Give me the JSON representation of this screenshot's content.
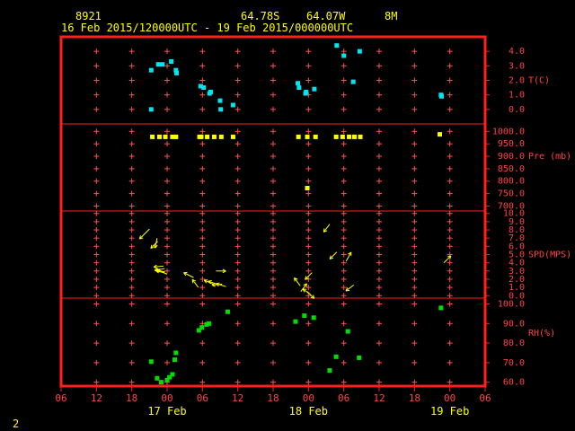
{
  "header": {
    "station_id": "8921",
    "latitude": "64.78S",
    "longitude": "64.07W",
    "elevation": "8M",
    "time_range": "16 Feb 2015/120000UTC - 19 Feb 2015/000000UTC"
  },
  "footer": {
    "page_number": "2"
  },
  "colors": {
    "frame": "#ff2020",
    "grid": "#ff5050",
    "temperature": "#00e5ee",
    "pressure": "#ffff00",
    "wind": "#ffff00",
    "humidity": "#00dd00",
    "axis_text": "#ff4444",
    "header_text": "#ffff00"
  },
  "chart_data": {
    "type": "scatter",
    "x_unit": "hours since 16 Feb 2015 06 UTC",
    "x_ticks": [
      {
        "x": 0,
        "label": "06"
      },
      {
        "x": 6,
        "label": "12"
      },
      {
        "x": 12,
        "label": "18"
      },
      {
        "x": 18,
        "label": "00"
      },
      {
        "x": 24,
        "label": "06"
      },
      {
        "x": 30,
        "label": "12"
      },
      {
        "x": 36,
        "label": "18"
      },
      {
        "x": 42,
        "label": "00"
      },
      {
        "x": 48,
        "label": "06"
      },
      {
        "x": 54,
        "label": "12"
      },
      {
        "x": 60,
        "label": "18"
      },
      {
        "x": 66,
        "label": "00"
      },
      {
        "x": 72,
        "label": "06"
      }
    ],
    "date_labels": [
      {
        "x": 18,
        "label": "17 Feb"
      },
      {
        "x": 42,
        "label": "18 Feb"
      },
      {
        "x": 66,
        "label": "19 Feb"
      }
    ],
    "xlim": [
      0,
      72
    ],
    "panels": [
      {
        "name": "T(C)",
        "label": "T(C)",
        "ylim": [
          -1,
          5
        ],
        "label_value": 2.0,
        "ticks": [
          "4.0",
          "3.0",
          "2.0",
          "1.0",
          "0.0"
        ],
        "tick_values": [
          4,
          3,
          2,
          1,
          0
        ],
        "marker": "square",
        "color_key": "temperature",
        "points": [
          [
            15.3,
            2.7
          ],
          [
            15.3,
            0.0
          ],
          [
            16.5,
            3.1
          ],
          [
            17.2,
            3.1
          ],
          [
            18.7,
            3.3
          ],
          [
            19.5,
            2.7
          ],
          [
            19.6,
            2.5
          ],
          [
            23.7,
            1.6
          ],
          [
            24.2,
            1.5
          ],
          [
            25.2,
            1.1
          ],
          [
            25.4,
            1.2
          ],
          [
            27.0,
            0.6
          ],
          [
            27.1,
            0.0
          ],
          [
            29.2,
            0.3
          ],
          [
            40.2,
            1.8
          ],
          [
            40.4,
            1.5
          ],
          [
            41.5,
            1.1
          ],
          [
            41.6,
            1.2
          ],
          [
            43.0,
            1.4
          ],
          [
            46.8,
            4.4
          ],
          [
            48.0,
            3.7
          ],
          [
            49.6,
            1.9
          ],
          [
            50.7,
            4.0
          ],
          [
            64.5,
            1.0
          ],
          [
            64.6,
            0.9
          ]
        ]
      },
      {
        "name": "Pre (mb)",
        "label": "Pre (mb)",
        "ylim": [
          680,
          1030
        ],
        "label_value": 900,
        "ticks": [
          "1000.0",
          "950.0",
          "900.0",
          "850.0",
          "800.0",
          "750.0",
          "700.0"
        ],
        "tick_values": [
          1000,
          950,
          900,
          850,
          800,
          750,
          700
        ],
        "marker": "square",
        "color_key": "pressure",
        "points": [
          [
            15.5,
            978
          ],
          [
            16.7,
            978
          ],
          [
            17.7,
            978
          ],
          [
            18.9,
            978
          ],
          [
            19.5,
            978
          ],
          [
            23.5,
            978
          ],
          [
            23.8,
            978
          ],
          [
            24.8,
            978
          ],
          [
            26.0,
            978
          ],
          [
            27.2,
            978
          ],
          [
            29.2,
            978
          ],
          [
            40.3,
            978
          ],
          [
            41.8,
            978
          ],
          [
            43.2,
            978
          ],
          [
            41.8,
            772
          ],
          [
            46.7,
            978
          ],
          [
            47.8,
            978
          ],
          [
            48.9,
            978
          ],
          [
            49.8,
            978
          ],
          [
            50.8,
            978
          ],
          [
            64.3,
            988
          ]
        ]
      },
      {
        "name": "SPD(MPS)",
        "label": "SPD(MPS)",
        "ylim": [
          -0.3,
          10.3
        ],
        "label_value": 5.0,
        "ticks": [
          "10.0",
          "9.0",
          "8.0",
          "7.0",
          "6.0",
          "5.0",
          "4.0",
          "3.0",
          "2.0",
          "1.0",
          "0.0"
        ],
        "tick_values": [
          10,
          9,
          8,
          7,
          6,
          5,
          4,
          3,
          2,
          1,
          0
        ],
        "marker": "arrow",
        "color_key": "wind",
        "arrows": [
          {
            "x": 15.0,
            "y": 8.1,
            "u": -1,
            "v": -1
          },
          {
            "x": 16.3,
            "y": 7.0,
            "u": -0.2,
            "v": -1
          },
          {
            "x": 16.4,
            "y": 6.6,
            "u": -0.7,
            "v": -0.7
          },
          {
            "x": 17.4,
            "y": 3.6,
            "u": -1,
            "v": -0.1
          },
          {
            "x": 17.6,
            "y": 3.3,
            "u": -1,
            "v": -0.2
          },
          {
            "x": 17.6,
            "y": 2.9,
            "u": -1,
            "v": 0.2
          },
          {
            "x": 17.8,
            "y": 2.7,
            "u": -1,
            "v": 0.3
          },
          {
            "x": 18.0,
            "y": 2.6,
            "u": -1,
            "v": 0.5
          },
          {
            "x": 22.5,
            "y": 2.2,
            "u": -1,
            "v": 0.5
          },
          {
            "x": 23.3,
            "y": 1.0,
            "u": -0.6,
            "v": 0.8
          },
          {
            "x": 26.3,
            "y": 3.0,
            "u": 1,
            "v": 0
          },
          {
            "x": 25.8,
            "y": 1.4,
            "u": -0.9,
            "v": 0.4
          },
          {
            "x": 26.5,
            "y": 1.4,
            "u": -0.9,
            "v": 0.3
          },
          {
            "x": 27.3,
            "y": 1.4,
            "u": -1,
            "v": -0.1
          },
          {
            "x": 28.0,
            "y": 1.1,
            "u": -1,
            "v": 0.3
          },
          {
            "x": 40.6,
            "y": 1.2,
            "u": -0.6,
            "v": 0.8
          },
          {
            "x": 40.7,
            "y": 0.5,
            "u": 0.6,
            "v": 0.8
          },
          {
            "x": 41.8,
            "y": 0.5,
            "u": 0.7,
            "v": -0.7
          },
          {
            "x": 42.4,
            "y": 0.1,
            "u": -0.8,
            "v": 0.6
          },
          {
            "x": 42.6,
            "y": 2.8,
            "u": -0.7,
            "v": -0.7
          },
          {
            "x": 45.6,
            "y": 8.7,
            "u": -0.6,
            "v": -0.8
          },
          {
            "x": 46.8,
            "y": 5.3,
            "u": -0.7,
            "v": -0.7
          },
          {
            "x": 48.4,
            "y": 4.2,
            "u": 0.5,
            "v": 0.9
          },
          {
            "x": 49.7,
            "y": 1.3,
            "u": -0.8,
            "v": -0.6
          },
          {
            "x": 65.0,
            "y": 4.0,
            "u": 0.7,
            "v": 0.7
          }
        ]
      },
      {
        "name": "RH(%)",
        "label": "RH(%)",
        "ylim": [
          58,
          103
        ],
        "label_value": 85,
        "ticks": [
          "100.0",
          "90.0",
          "80.0",
          "70.0",
          "60.0"
        ],
        "tick_values": [
          100,
          90,
          80,
          70,
          60
        ],
        "marker": "square",
        "color_key": "humidity",
        "points": [
          [
            15.3,
            70.5
          ],
          [
            16.3,
            62
          ],
          [
            17.0,
            60
          ],
          [
            18.0,
            61
          ],
          [
            18.4,
            62.5
          ],
          [
            18.9,
            64
          ],
          [
            19.3,
            71.5
          ],
          [
            19.5,
            75
          ],
          [
            23.4,
            86.5
          ],
          [
            23.9,
            88
          ],
          [
            24.7,
            89.5
          ],
          [
            25.1,
            90
          ],
          [
            28.3,
            96
          ],
          [
            39.8,
            91
          ],
          [
            41.3,
            94
          ],
          [
            42.9,
            93
          ],
          [
            45.6,
            66
          ],
          [
            46.7,
            73
          ],
          [
            48.7,
            86
          ],
          [
            50.6,
            72.5
          ],
          [
            64.5,
            98
          ]
        ]
      }
    ]
  }
}
